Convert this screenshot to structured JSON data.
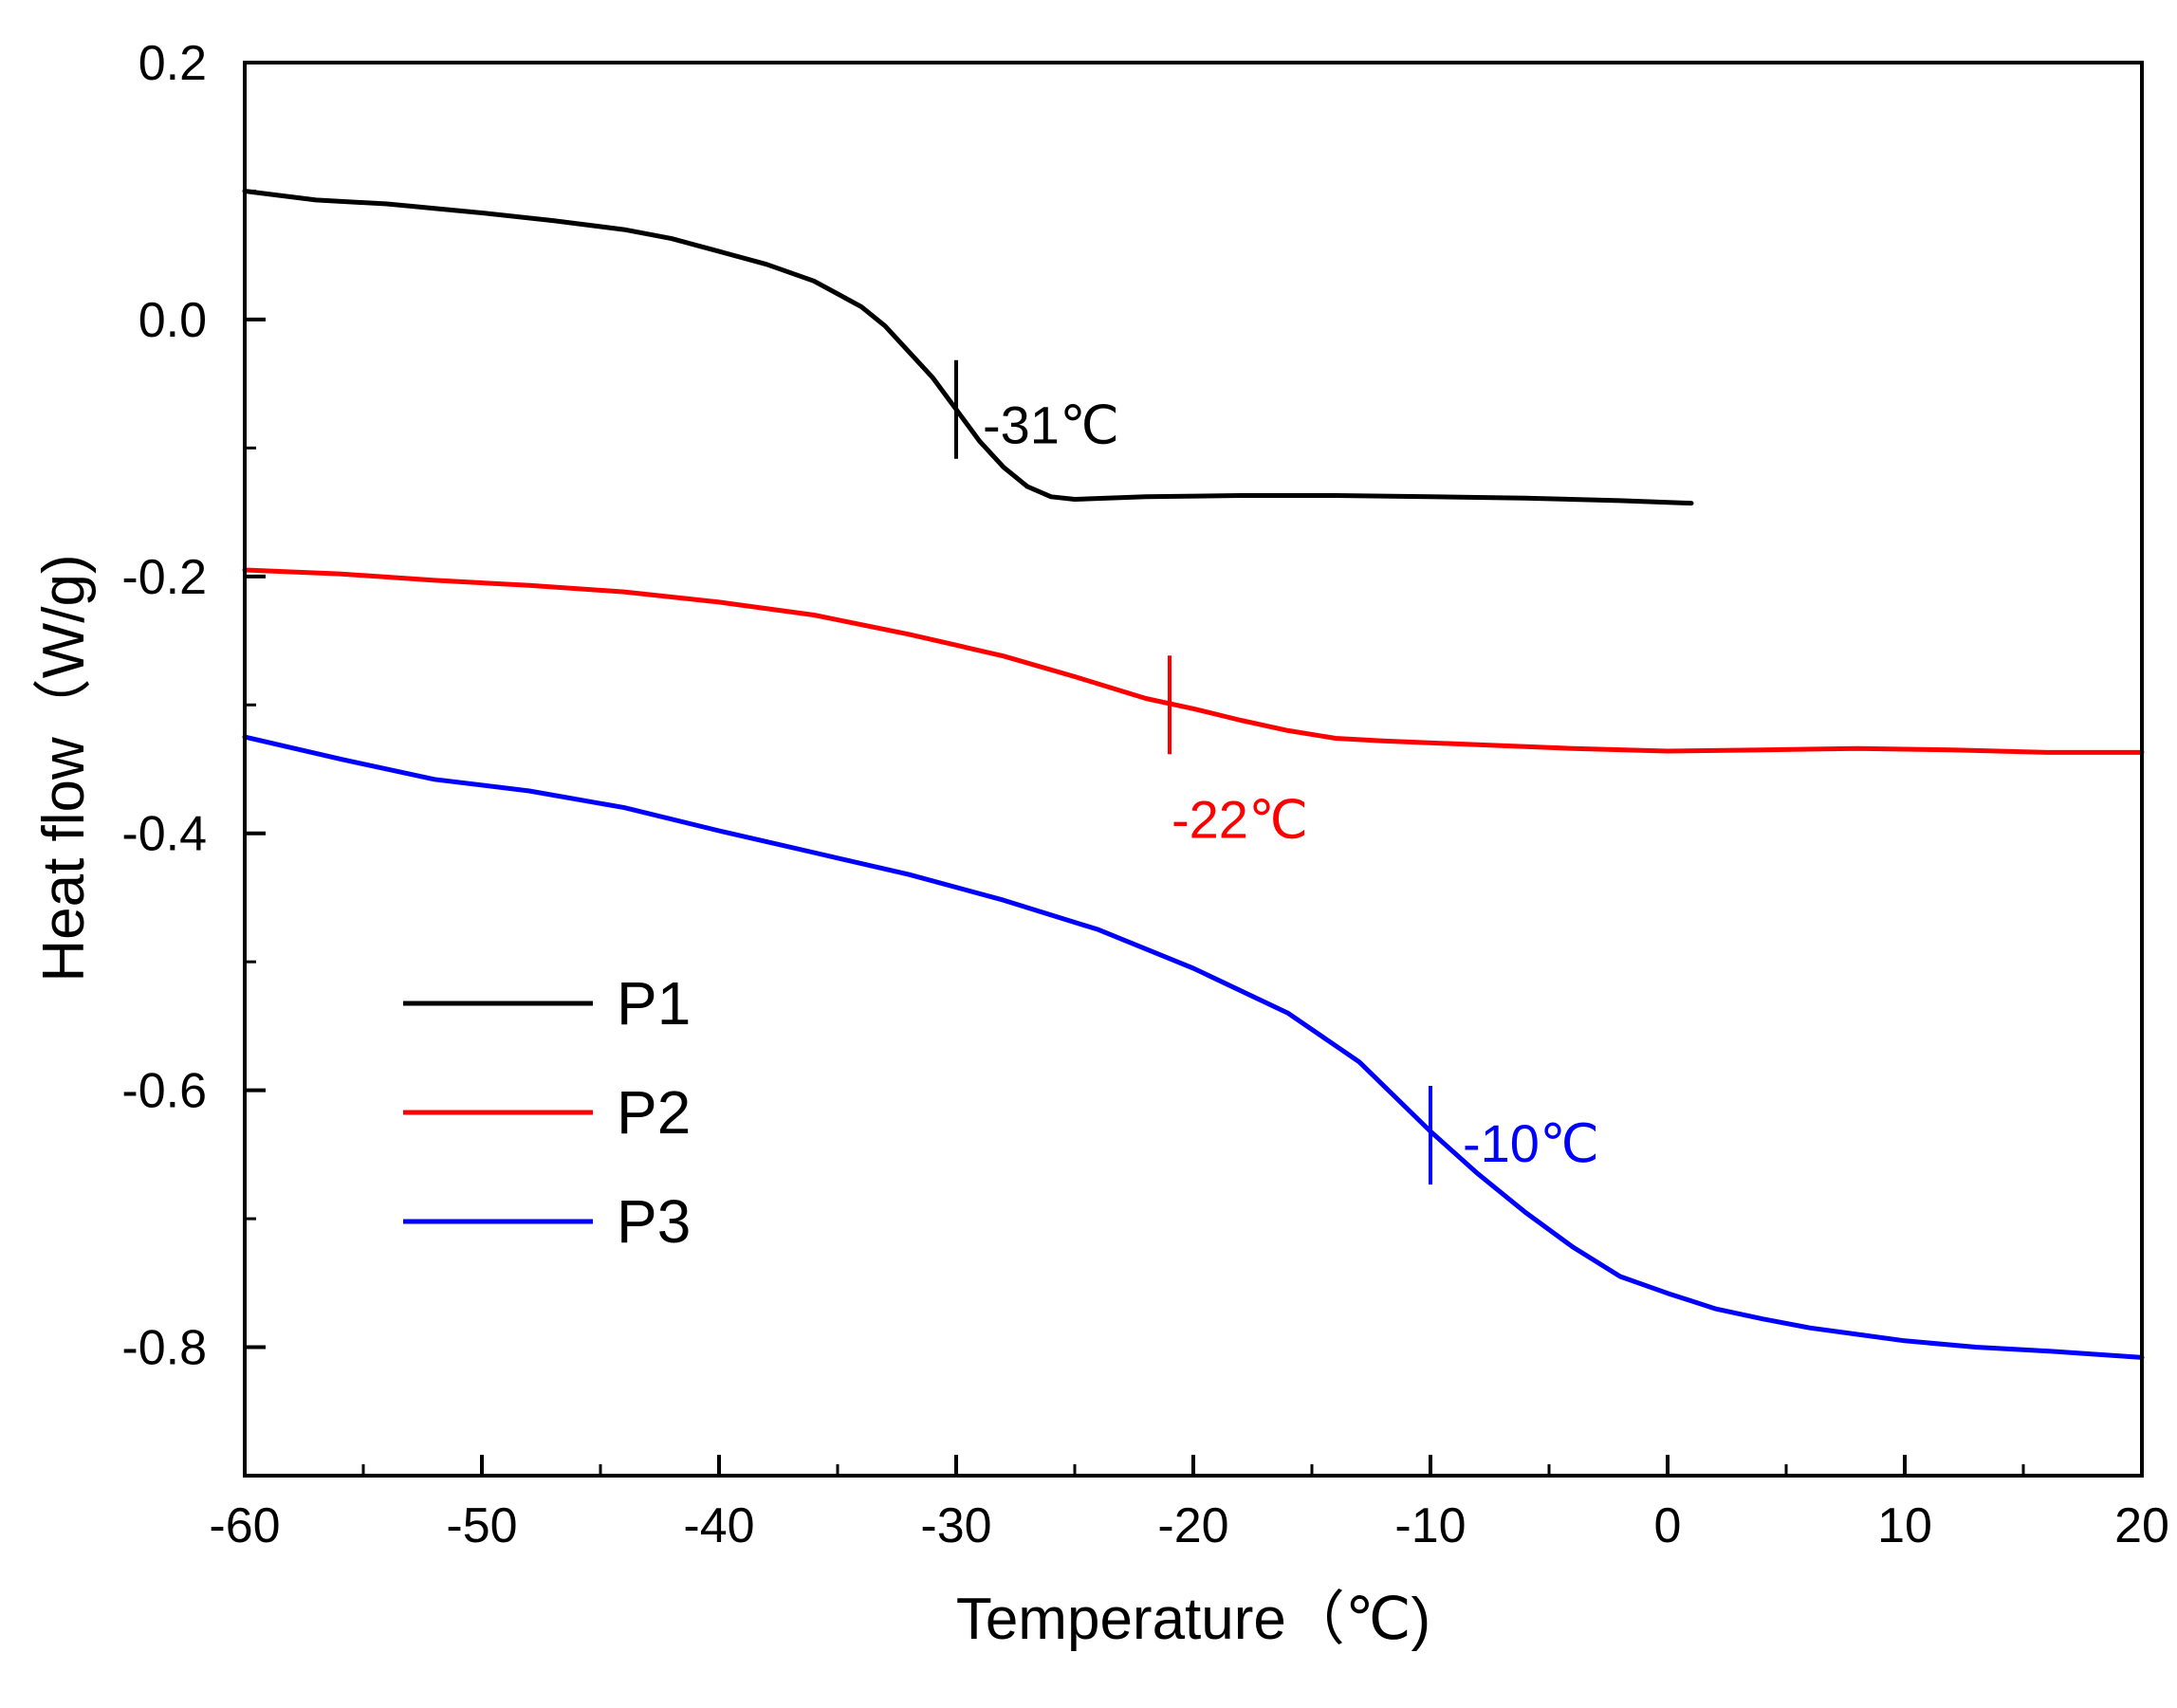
{
  "chart_data": {
    "type": "line",
    "title": "",
    "xlabel": "Temperature（℃)",
    "ylabel": "Heat flow（W/g)",
    "xlim": [
      -60,
      20
    ],
    "ylim": [
      -0.9,
      0.2
    ],
    "x_ticks": [
      -60,
      -50,
      -40,
      -30,
      -20,
      -10,
      0,
      10,
      20
    ],
    "x_tick_labels": [
      "-60",
      "-50",
      "-40",
      "-30",
      "-20",
      "-10",
      "0",
      "10",
      "20"
    ],
    "y_ticks": [
      0.2,
      0.0,
      -0.2,
      -0.4,
      -0.6,
      -0.8
    ],
    "y_tick_labels": [
      "0.2",
      "0.0",
      "-0.2",
      "-0.4",
      "-0.6",
      "-0.8"
    ],
    "grid": false,
    "legend_position": "lower-left",
    "series": [
      {
        "name": "P1",
        "color": "#000000",
        "points": [
          [
            -60,
            0.1
          ],
          [
            -57,
            0.093
          ],
          [
            -54,
            0.09
          ],
          [
            -50,
            0.083
          ],
          [
            -47,
            0.077
          ],
          [
            -44,
            0.07
          ],
          [
            -42,
            0.063
          ],
          [
            -40,
            0.053
          ],
          [
            -38,
            0.043
          ],
          [
            -36,
            0.03
          ],
          [
            -34,
            0.01
          ],
          [
            -33,
            -0.005
          ],
          [
            -32,
            -0.025
          ],
          [
            -31,
            -0.045
          ],
          [
            -30,
            -0.07
          ],
          [
            -29,
            -0.095
          ],
          [
            -28,
            -0.115
          ],
          [
            -27,
            -0.13
          ],
          [
            -26,
            -0.138
          ],
          [
            -25,
            -0.14
          ],
          [
            -22,
            -0.138
          ],
          [
            -18,
            -0.137
          ],
          [
            -14,
            -0.137
          ],
          [
            -10,
            -0.138
          ],
          [
            -6,
            -0.139
          ],
          [
            -2,
            -0.141
          ],
          [
            1,
            -0.143
          ]
        ],
        "marker": {
          "x": -30,
          "y": -0.07,
          "label": "-31℃"
        }
      },
      {
        "name": "P2",
        "color": "#ff0000",
        "points": [
          [
            -60,
            -0.195
          ],
          [
            -56,
            -0.198
          ],
          [
            -52,
            -0.203
          ],
          [
            -48,
            -0.207
          ],
          [
            -44,
            -0.212
          ],
          [
            -40,
            -0.22
          ],
          [
            -36,
            -0.23
          ],
          [
            -32,
            -0.245
          ],
          [
            -28,
            -0.262
          ],
          [
            -25,
            -0.278
          ],
          [
            -22,
            -0.295
          ],
          [
            -20,
            -0.303
          ],
          [
            -18,
            -0.312
          ],
          [
            -16,
            -0.32
          ],
          [
            -14,
            -0.326
          ],
          [
            -12,
            -0.328
          ],
          [
            -8,
            -0.331
          ],
          [
            -4,
            -0.334
          ],
          [
            0,
            -0.336
          ],
          [
            4,
            -0.335
          ],
          [
            8,
            -0.334
          ],
          [
            12,
            -0.335
          ],
          [
            16,
            -0.337
          ],
          [
            20,
            -0.337
          ]
        ],
        "marker": {
          "x": -21,
          "y": -0.3,
          "label": "-22℃"
        }
      },
      {
        "name": "P3",
        "color": "#0000ff",
        "points": [
          [
            -60,
            -0.325
          ],
          [
            -56,
            -0.342
          ],
          [
            -52,
            -0.358
          ],
          [
            -48,
            -0.367
          ],
          [
            -44,
            -0.38
          ],
          [
            -40,
            -0.398
          ],
          [
            -36,
            -0.415
          ],
          [
            -32,
            -0.432
          ],
          [
            -28,
            -0.452
          ],
          [
            -24,
            -0.475
          ],
          [
            -20,
            -0.505
          ],
          [
            -16,
            -0.54
          ],
          [
            -13,
            -0.578
          ],
          [
            -10,
            -0.632
          ],
          [
            -8,
            -0.665
          ],
          [
            -6,
            -0.695
          ],
          [
            -4,
            -0.722
          ],
          [
            -2,
            -0.745
          ],
          [
            0,
            -0.758
          ],
          [
            2,
            -0.77
          ],
          [
            4,
            -0.778
          ],
          [
            6,
            -0.785
          ],
          [
            8,
            -0.79
          ],
          [
            10,
            -0.795
          ],
          [
            13,
            -0.8
          ],
          [
            16,
            -0.803
          ],
          [
            20,
            -0.808
          ]
        ],
        "marker": {
          "x": -10,
          "y": -0.635,
          "label": "-10℃"
        }
      }
    ]
  }
}
